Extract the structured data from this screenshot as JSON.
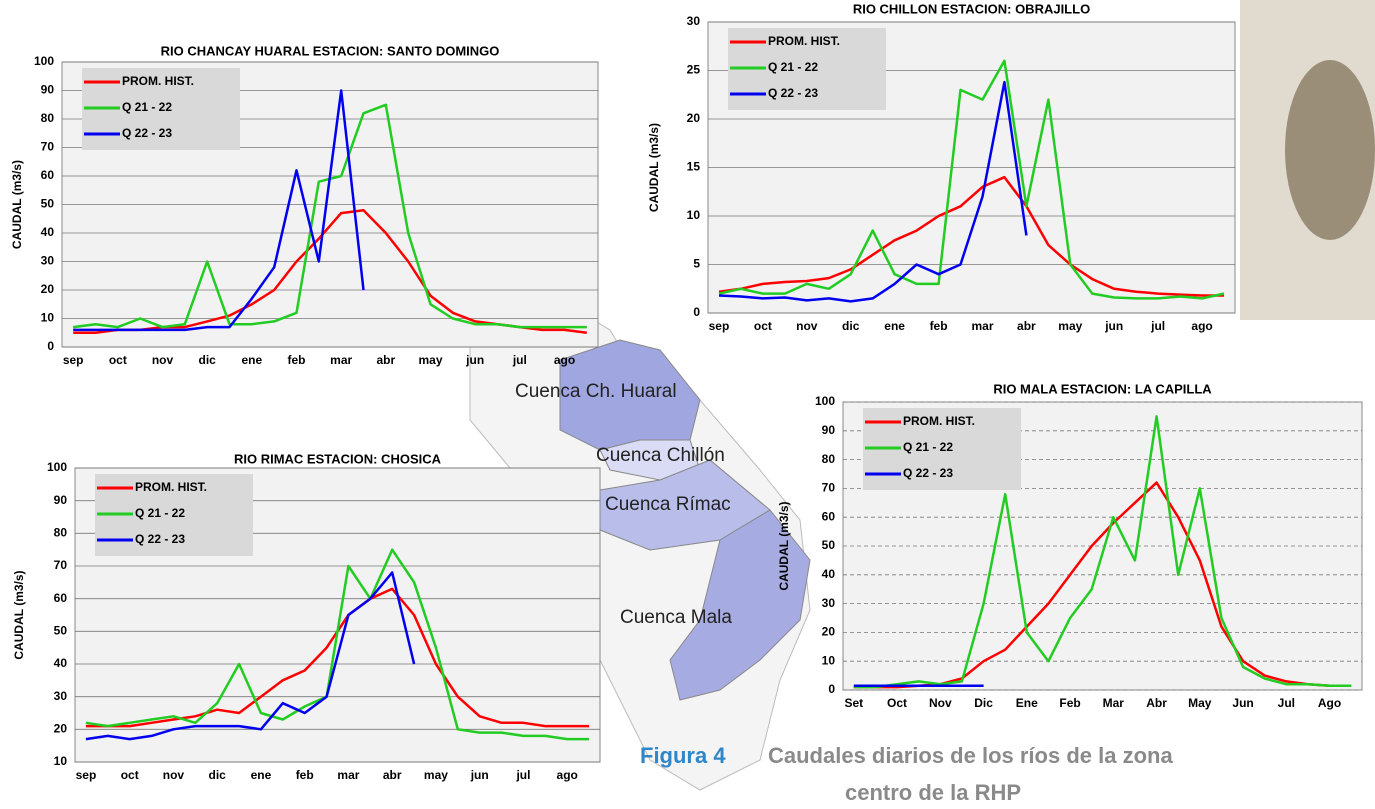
{
  "chart_data": [
    {
      "type": "line",
      "title": "RIO CHANCAY HUARAL ESTACION: SANTO DOMINGO",
      "y_label": "CAUDAL (m3/s)",
      "categories": [
        "sep",
        null,
        "oct",
        null,
        "nov",
        null,
        "dic",
        null,
        "ene",
        null,
        "feb",
        null,
        "mar",
        null,
        "abr",
        null,
        "may",
        null,
        "jun",
        null,
        "jul",
        null,
        "ago",
        null
      ],
      "series": [
        {
          "name": "PROM. HIST.",
          "color": "#ff0000",
          "values": [
            5,
            5,
            6,
            6,
            7,
            7,
            9,
            11,
            15,
            20,
            30,
            38,
            47,
            48,
            40,
            30,
            18,
            12,
            9,
            8,
            7,
            6,
            6,
            5
          ]
        },
        {
          "name": "Q 21 - 22",
          "color": "#22cc22",
          "values": [
            7,
            8,
            7,
            10,
            7,
            8,
            30,
            8,
            8,
            9,
            12,
            58,
            60,
            82,
            85,
            40,
            15,
            10,
            8,
            8,
            7,
            7,
            7,
            7
          ]
        },
        {
          "name": "Q 22 - 23",
          "color": "#0000ee",
          "values": [
            6,
            6,
            6,
            6,
            6,
            6,
            7,
            7,
            17,
            28,
            62,
            30,
            90,
            20,
            null,
            null,
            null,
            null,
            null,
            null,
            null,
            null,
            null,
            null
          ]
        }
      ],
      "ylim": [
        0,
        100
      ],
      "yticks": [
        0,
        10,
        20,
        30,
        40,
        50,
        60,
        70,
        80,
        90,
        100
      ],
      "grid": true,
      "grid_style": "solid",
      "legend": "upper left"
    },
    {
      "type": "line",
      "title": "RIO CHILLON ESTACION: OBRAJILLO",
      "y_label": "CAUDAL (m3/s)",
      "categories": [
        "sep",
        null,
        "oct",
        null,
        "nov",
        null,
        "dic",
        null,
        "ene",
        null,
        "feb",
        null,
        "mar",
        null,
        "abr",
        null,
        "may",
        null,
        "jun",
        null,
        "jul",
        null,
        "ago",
        null
      ],
      "series": [
        {
          "name": "PROM. HIST.",
          "color": "#ff0000",
          "values": [
            2.2,
            2.5,
            3,
            3.2,
            3.3,
            3.6,
            4.5,
            6,
            7.5,
            8.5,
            10,
            11,
            13,
            14,
            11,
            7,
            5,
            3.5,
            2.5,
            2.2,
            2,
            1.9,
            1.8,
            1.8
          ]
        },
        {
          "name": "Q 21 - 22",
          "color": "#22cc22",
          "values": [
            2,
            2.5,
            2,
            2,
            3,
            2.5,
            4,
            8.5,
            4,
            3,
            3,
            23,
            22,
            26,
            11,
            22,
            5,
            2,
            1.6,
            1.5,
            1.5,
            1.7,
            1.5,
            2
          ]
        },
        {
          "name": "Q 22 - 23",
          "color": "#0000ee",
          "values": [
            1.8,
            1.7,
            1.5,
            1.6,
            1.3,
            1.5,
            1.2,
            1.5,
            3,
            5,
            4,
            5,
            12,
            23.8,
            8,
            null,
            null,
            null,
            null,
            null,
            null,
            null,
            null,
            null
          ]
        }
      ],
      "ylim": [
        0,
        30
      ],
      "yticks": [
        0,
        5,
        10,
        15,
        20,
        25,
        30
      ],
      "grid": true,
      "grid_style": "solid",
      "legend": "upper left"
    },
    {
      "type": "line",
      "title": "RIO RIMAC ESTACION: CHOSICA",
      "y_label": "CAUDAL (m3/s)",
      "categories": [
        "sep",
        null,
        "oct",
        null,
        "nov",
        null,
        "dic",
        null,
        "ene",
        null,
        "feb",
        null,
        "mar",
        null,
        "abr",
        null,
        "may",
        null,
        "jun",
        null,
        "jul",
        null,
        "ago",
        null
      ],
      "series": [
        {
          "name": "PROM. HIST.",
          "color": "#ff0000",
          "values": [
            21,
            21,
            21,
            22,
            23,
            24,
            26,
            25,
            30,
            35,
            38,
            45,
            55,
            60,
            63,
            55,
            40,
            30,
            24,
            22,
            22,
            21,
            21,
            21
          ]
        },
        {
          "name": "Q 21 - 22",
          "color": "#22cc22",
          "values": [
            22,
            21,
            22,
            23,
            24,
            22,
            28,
            40,
            25,
            23,
            27,
            30,
            70,
            60,
            75,
            65,
            45,
            20,
            19,
            19,
            18,
            18,
            17,
            17
          ]
        },
        {
          "name": "Q 22 - 23",
          "color": "#0000ee",
          "values": [
            17,
            18,
            17,
            18,
            20,
            21,
            21,
            21,
            20,
            28,
            25,
            30,
            55,
            60,
            68,
            40,
            null,
            null,
            null,
            null,
            null,
            null,
            null,
            null
          ]
        }
      ],
      "ylim": [
        10,
        100
      ],
      "yticks": [
        10,
        20,
        30,
        40,
        50,
        60,
        70,
        80,
        90,
        100
      ],
      "grid": true,
      "grid_style": "solid",
      "legend": "upper left"
    },
    {
      "type": "line",
      "title": "RIO MALA ESTACION: LA CAPILLA",
      "y_label": "CAUDAL (m3/s)",
      "categories": [
        "Set",
        null,
        "Oct",
        null,
        "Nov",
        null,
        "Dic",
        null,
        "Ene",
        null,
        "Feb",
        null,
        "Mar",
        null,
        "Abr",
        null,
        "May",
        null,
        "Jun",
        null,
        "Jul",
        null,
        "Ago",
        null
      ],
      "series": [
        {
          "name": "PROM. HIST.",
          "color": "#ff0000",
          "values": [
            1,
            1,
            1,
            1.5,
            2,
            4,
            10,
            14,
            22,
            30,
            40,
            50,
            58,
            65,
            72,
            60,
            45,
            22,
            10,
            5,
            3,
            2,
            1.5,
            1.5
          ]
        },
        {
          "name": "Q 21 - 22",
          "color": "#22cc22",
          "values": [
            1,
            1,
            2,
            3,
            2,
            3,
            30,
            68,
            20,
            10,
            25,
            35,
            60,
            45,
            95,
            40,
            70,
            25,
            8,
            4,
            2,
            2,
            1.5,
            1.5
          ]
        },
        {
          "name": "Q 22 - 23",
          "color": "#0000ee",
          "values": [
            1.5,
            1.5,
            1.5,
            1.5,
            1.5,
            1.5,
            1.5,
            null,
            null,
            null,
            null,
            null,
            null,
            null,
            null,
            null,
            null,
            null,
            null,
            null,
            null,
            null,
            null,
            null
          ]
        }
      ],
      "ylim": [
        0,
        100
      ],
      "yticks": [
        0,
        10,
        20,
        30,
        40,
        50,
        60,
        70,
        80,
        90,
        100
      ],
      "grid": true,
      "grid_style": "dashed",
      "legend": "upper left"
    }
  ],
  "map_labels": [
    "Cuenca Ch. Huaral",
    "Cuenca Chillón",
    "Cuenca Rímac",
    "Cuenca Mala"
  ],
  "caption": {
    "figure": "Figura 4",
    "line1": "Caudales diarios de los ríos de la zona",
    "line2": "centro de la RHP"
  }
}
